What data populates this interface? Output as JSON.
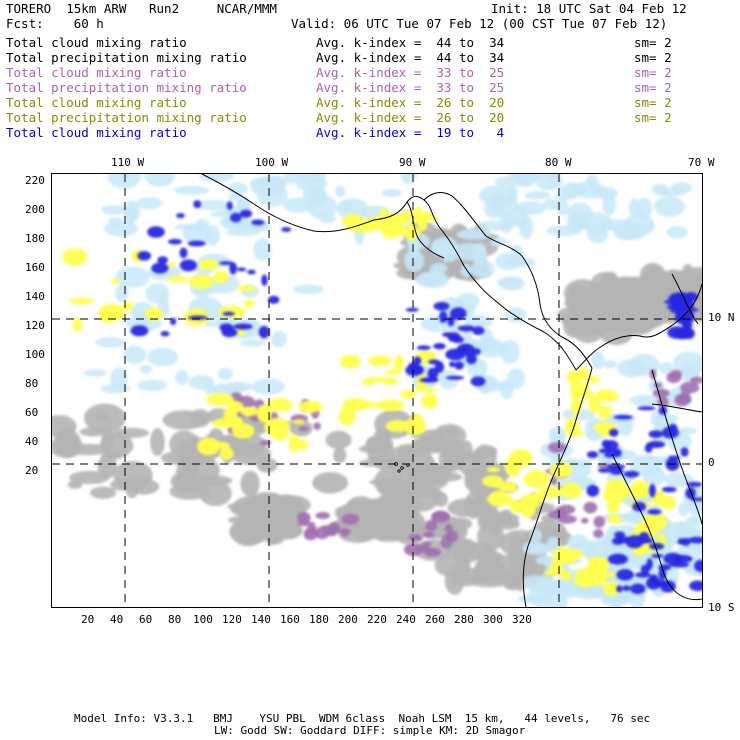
{
  "header": {
    "line1_left": "TORERO  15km ARW   Run2     NCAR/MMM",
    "line2_left": "Fcst:    60 h",
    "init": "Init: 18 UTC Sat 04 Feb 12",
    "valid": "Valid: 06 UTC Tue 07 Feb 12 (00 CST Tue 07 Feb 12)"
  },
  "legend": [
    {
      "field": "Total cloud mixing ratio",
      "range": "Avg. k-index =  44 to  34",
      "sm": "sm= 2",
      "color": "#000000"
    },
    {
      "field": "Total precipitation mixing ratio",
      "range": "Avg. k-index =  44 to  34",
      "sm": "sm= 2",
      "color": "#000000"
    },
    {
      "field": "Total cloud mixing ratio",
      "range": "Avg. k-index =  33 to  25",
      "sm": "sm= 2",
      "color": "#b060b0"
    },
    {
      "field": "Total precipitation mixing ratio",
      "range": "Avg. k-index =  33 to  25",
      "sm": "sm= 2",
      "color": "#b060b0"
    },
    {
      "field": "Total cloud mixing ratio",
      "range": "Avg. k-index =  26 to  20",
      "sm": "sm= 2",
      "color": "#8a8a00"
    },
    {
      "field": "Total precipitation mixing ratio",
      "range": "Avg. k-index =  26 to  20",
      "sm": "sm= 2",
      "color": "#8a8a00"
    },
    {
      "field": "Total cloud mixing ratio",
      "range": "Avg. k-index =  19 to   4",
      "sm": "",
      "color": "#0000e0"
    }
  ],
  "map": {
    "top_lon_labels": [
      "110 W",
      "100 W",
      "90 W",
      "80 W",
      "70 W"
    ],
    "right_lat_labels": [
      "10 N",
      "0",
      "10 S"
    ],
    "y_ticks": [
      "220",
      "200",
      "180",
      "160",
      "140",
      "120",
      "100",
      "80",
      "60",
      "40",
      "20"
    ],
    "x_ticks": [
      "20",
      "40",
      "60",
      "80",
      "100",
      "120",
      "140",
      "160",
      "180",
      "200",
      "220",
      "240",
      "260",
      "280",
      "300",
      "320"
    ],
    "colors": {
      "gray": "#b4b4b4",
      "purple": "#a070b0",
      "yellow": "#ffff50",
      "lightblue": "#c8e8f8",
      "blue": "#2828e0"
    }
  },
  "footer": {
    "line1": "Model Info: V3.3.1   BMJ    YSU PBL  WDM 6class  Noah LSM  15 km,   44 levels,   76 sec",
    "line2": "LW: Godd SW: Goddard DIFF: simple KM: 2D Smagor"
  }
}
